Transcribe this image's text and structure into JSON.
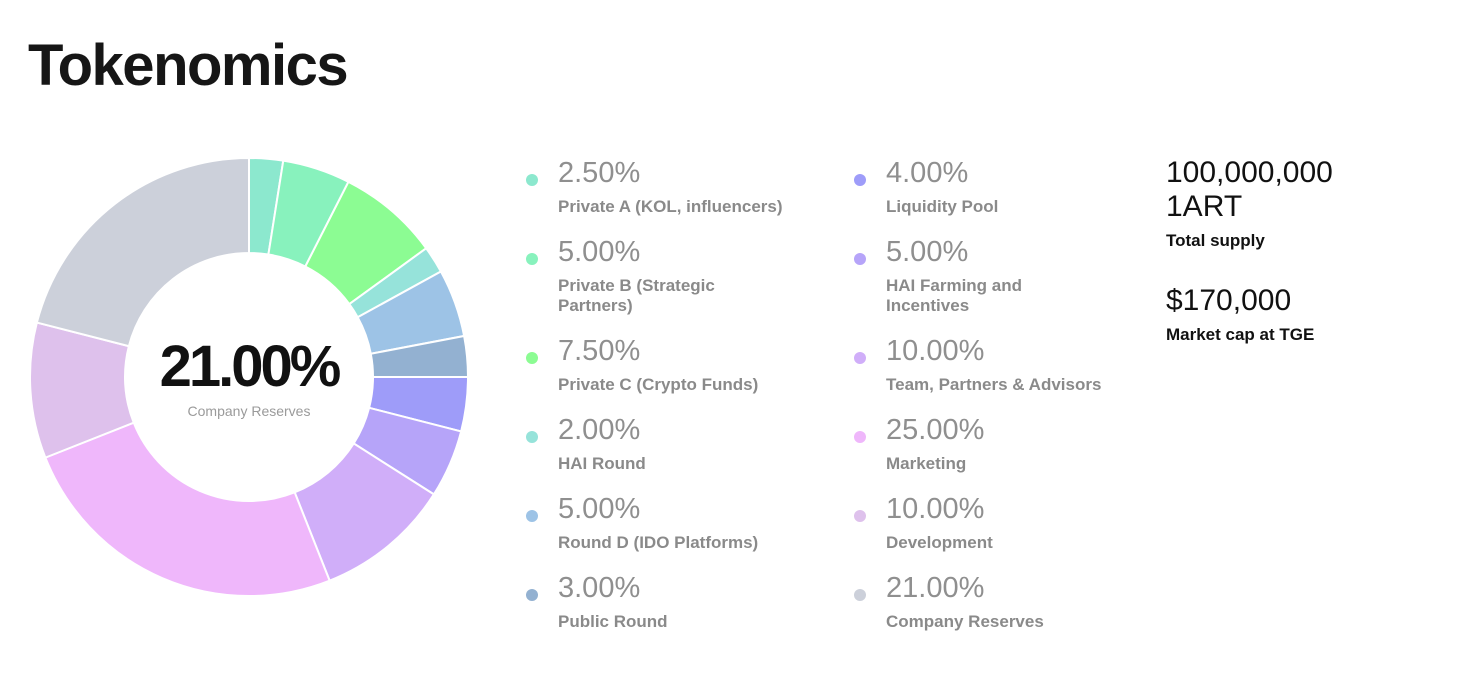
{
  "page": {
    "title": "Tokenomics"
  },
  "center": {
    "value": "21.00%",
    "label": "Company Reserves"
  },
  "stats": {
    "total_supply_value": "100,000,000\n1ART",
    "total_supply_label": "Total supply",
    "market_cap_value": "$170,000",
    "market_cap_label": "Market cap at TGE"
  },
  "legend": [
    {
      "pct": "2.50%",
      "name": "Private A (KOL, influencers)"
    },
    {
      "pct": "5.00%",
      "name": "Private B (Strategic Partners)"
    },
    {
      "pct": "7.50%",
      "name": "Private C (Crypto Funds)"
    },
    {
      "pct": "2.00%",
      "name": "HAI Round"
    },
    {
      "pct": "5.00%",
      "name": "Round D (IDO Platforms)"
    },
    {
      "pct": "3.00%",
      "name": "Public Round"
    },
    {
      "pct": "4.00%",
      "name": "Liquidity Pool"
    },
    {
      "pct": "5.00%",
      "name": "HAI Farming and Incentives"
    },
    {
      "pct": "10.00%",
      "name": "Team, Partners & Advisors"
    },
    {
      "pct": "25.00%",
      "name": "Marketing"
    },
    {
      "pct": "10.00%",
      "name": "Development"
    },
    {
      "pct": "21.00%",
      "name": "Company Reserves"
    }
  ],
  "chart_data": {
    "type": "pie",
    "categories": [
      "Private A (KOL, influencers)",
      "Private B (Strategic Partners)",
      "Private C (Crypto Funds)",
      "HAI Round",
      "Round D (IDO Platforms)",
      "Public Round",
      "Liquidity Pool",
      "HAI Farming and Incentives",
      "Team, Partners & Advisors",
      "Marketing",
      "Development",
      "Company Reserves"
    ],
    "values": [
      2.5,
      5,
      7.5,
      2,
      5,
      3,
      4,
      5,
      10,
      25,
      10,
      21
    ],
    "colors": [
      "#8ce8ce",
      "#88f2bd",
      "#8cfc93",
      "#96e3da",
      "#9dc3e6",
      "#93b1d1",
      "#9e9cf9",
      "#b6a4f9",
      "#d0aef9",
      "#efb7fb",
      "#dec1ec",
      "#ccd0da"
    ],
    "style": "donut",
    "highlighted": "Company Reserves"
  }
}
